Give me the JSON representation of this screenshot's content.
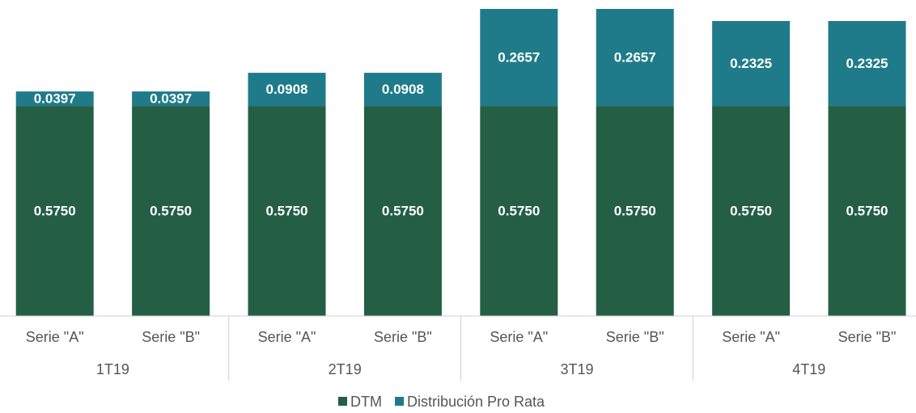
{
  "chart_data": {
    "type": "stacked-bar",
    "categories": [
      "Serie \"A\"",
      "Serie \"B\"",
      "Serie \"A\"",
      "Serie \"B\"",
      "Serie \"A\"",
      "Serie \"B\"",
      "Serie \"A\"",
      "Serie \"B\""
    ],
    "groups": [
      "1T19",
      "2T19",
      "3T19",
      "4T19"
    ],
    "series": [
      {
        "name": "DTM",
        "color": "#245e45",
        "values": [
          0.575,
          0.575,
          0.575,
          0.575,
          0.575,
          0.575,
          0.575,
          0.575
        ],
        "value_labels": [
          "0.5750",
          "0.5750",
          "0.5750",
          "0.5750",
          "0.5750",
          "0.5750",
          "0.5750",
          "0.5750"
        ]
      },
      {
        "name": "Distribución Pro Rata",
        "color": "#1f7b8a",
        "values": [
          0.0397,
          0.0397,
          0.0908,
          0.0908,
          0.2657,
          0.2657,
          0.2325,
          0.2325
        ]
      }
    ],
    "legend": "bottom"
  }
}
